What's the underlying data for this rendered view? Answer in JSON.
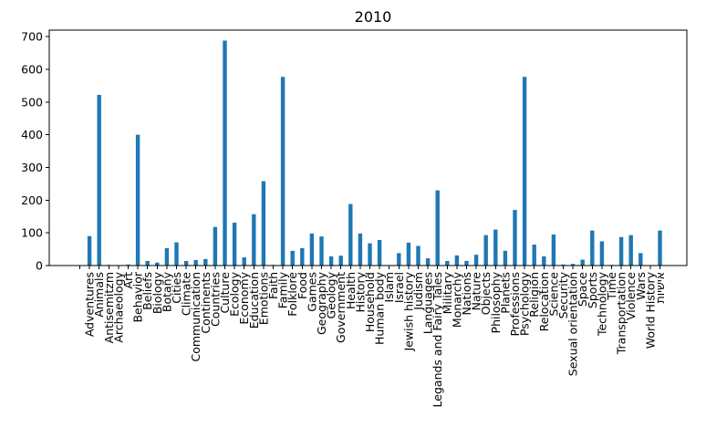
{
  "chart_data": {
    "type": "bar",
    "title": "2010",
    "xlabel": "",
    "ylabel": "",
    "ylim": [
      0,
      720
    ],
    "yticks": [
      0,
      100,
      200,
      300,
      400,
      500,
      600,
      700
    ],
    "bar_color": "#1f77b4",
    "grid": false,
    "categories": [
      "",
      "Adventures",
      "Animals",
      "Antisemitzm",
      "Archaeology",
      "Art",
      "Behavior",
      "Beliefs",
      "Biology",
      "Botany",
      "Cities",
      "Climate",
      "Communication",
      "Continents",
      "Countries",
      "Culture",
      "Ecology",
      "Economy",
      "Education",
      "Emotions",
      "Faith",
      "Family",
      "Folklore",
      "Food",
      "Games",
      "Geography",
      "Geology",
      "Government",
      "Health",
      "History",
      "Household",
      "Human body",
      "Islam",
      "Israel",
      "Jewish history",
      "Judism",
      "Languages",
      "Legands and Fairy Tales",
      "Military",
      "Monarchy",
      "Nations",
      "Nature",
      "Objects",
      "Philosophy",
      "Planets",
      "Professions",
      "Psychology",
      "Religion",
      "Relocation",
      "Science",
      "Security",
      "Sexual orientation",
      "Space",
      "Sports",
      "Technology",
      "Time",
      "Transportation",
      "Violence",
      "Wars",
      "World History",
      "אישיות"
    ],
    "values": [
      0,
      90,
      522,
      2,
      0,
      3,
      400,
      14,
      9,
      53,
      71,
      14,
      17,
      20,
      118,
      688,
      131,
      25,
      157,
      258,
      2,
      577,
      45,
      53,
      98,
      89,
      28,
      30,
      188,
      98,
      68,
      78,
      0,
      38,
      70,
      60,
      22,
      230,
      14,
      31,
      14,
      33,
      93,
      110,
      45,
      170,
      577,
      64,
      28,
      95,
      3,
      5,
      18,
      107,
      74,
      2,
      87,
      93,
      38,
      0,
      107
    ]
  }
}
